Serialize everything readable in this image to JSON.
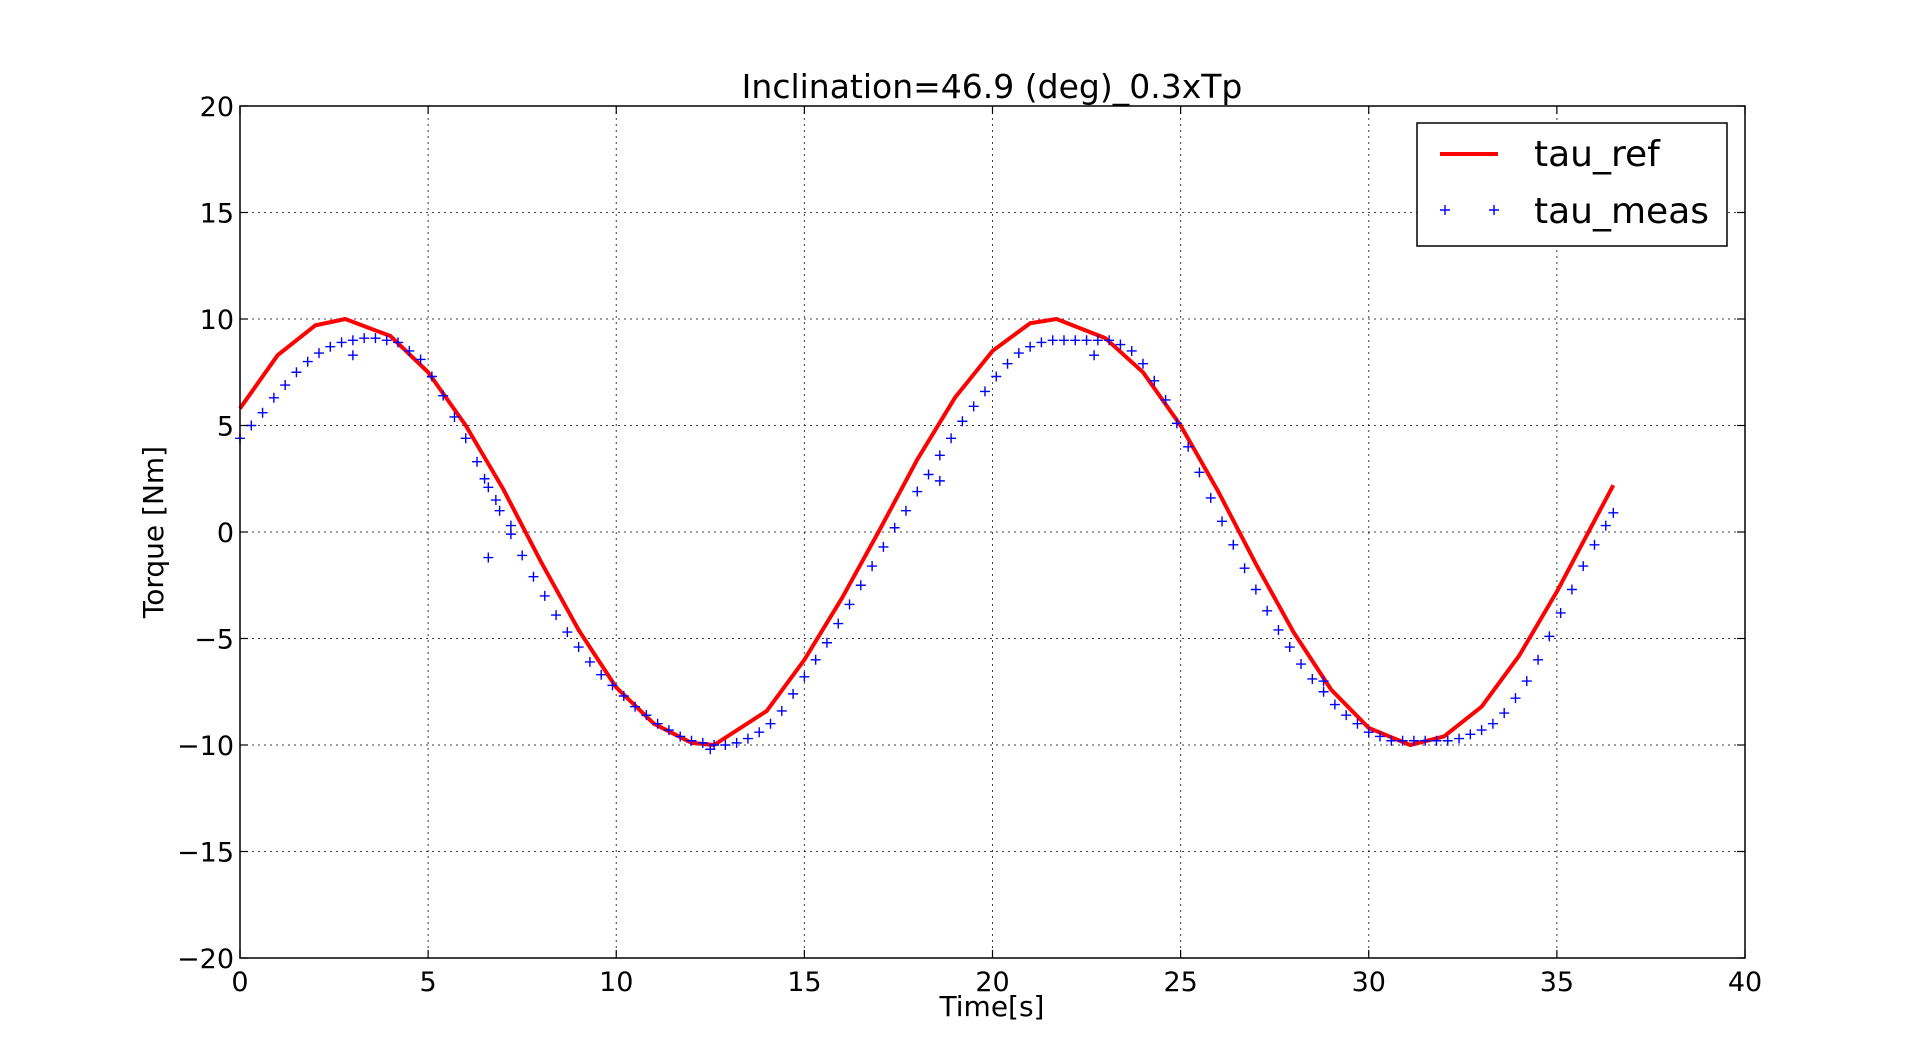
{
  "chart_data": {
    "type": "line",
    "title": "Inclination=46.9 (deg)_0.3xTp",
    "xlabel": "Time[s]",
    "ylabel": "Torque [Nm]",
    "xlim": [
      0,
      40
    ],
    "ylim": [
      -20,
      20
    ],
    "x_ticks": [
      "0",
      "5",
      "10",
      "15",
      "20",
      "25",
      "30",
      "35",
      "40"
    ],
    "y_ticks": [
      "20",
      "15",
      "10",
      "5",
      "0",
      "−5",
      "−10",
      "−15",
      "−20"
    ],
    "grid": true,
    "legend_position": "top-right",
    "series": [
      {
        "name": "tau_ref",
        "style": "line",
        "color": "#ff0000",
        "x": [
          0,
          1,
          2,
          2.8,
          4,
          5,
          6,
          7,
          8,
          9,
          10,
          11,
          12,
          12.6,
          14,
          15,
          16,
          17,
          18,
          19,
          20,
          21,
          21.7,
          23,
          24,
          25,
          26,
          27,
          28,
          29,
          30,
          31.1,
          32,
          33,
          34,
          35,
          36.5
        ],
        "y": [
          5.8,
          8.3,
          9.7,
          10.0,
          9.2,
          7.5,
          5.0,
          2.0,
          -1.4,
          -4.6,
          -7.3,
          -9.0,
          -9.9,
          -10.0,
          -8.4,
          -6.0,
          -3.1,
          0.1,
          3.4,
          6.3,
          8.5,
          9.8,
          10.0,
          9.1,
          7.5,
          5.0,
          1.9,
          -1.5,
          -4.7,
          -7.4,
          -9.2,
          -10.0,
          -9.6,
          -8.2,
          -5.8,
          -2.8,
          2.2
        ]
      },
      {
        "name": "tau_meas",
        "style": "markers",
        "color": "#0000ff",
        "x": [
          0,
          0.3,
          0.6,
          0.9,
          1.2,
          1.5,
          1.8,
          2.1,
          2.4,
          2.7,
          3.0,
          3.3,
          3.6,
          3.9,
          4.2,
          4.5,
          4.8,
          5.1,
          5.4,
          5.7,
          6.0,
          6.3,
          6.6,
          6.9,
          7.2,
          7.5,
          7.8,
          8.1,
          8.4,
          8.7,
          9.0,
          9.3,
          9.6,
          9.9,
          10.2,
          10.5,
          10.8,
          11.1,
          11.4,
          11.7,
          12.0,
          12.3,
          12.6,
          12.9,
          13.2,
          13.5,
          13.8,
          14.1,
          14.4,
          14.7,
          15.0,
          15.3,
          15.6,
          15.9,
          16.2,
          16.5,
          16.8,
          17.1,
          17.4,
          17.7,
          18.0,
          18.3,
          18.6,
          18.9,
          19.2,
          19.5,
          19.8,
          20.1,
          20.4,
          20.7,
          21.0,
          21.3,
          21.6,
          21.9,
          22.2,
          22.5,
          22.8,
          23.1,
          23.4,
          23.7,
          24.0,
          24.3,
          24.6,
          24.9,
          25.2,
          25.5,
          25.8,
          26.1,
          26.4,
          26.7,
          27.0,
          27.3,
          27.6,
          27.9,
          28.2,
          28.5,
          28.8,
          29.1,
          29.4,
          29.7,
          30.0,
          30.3,
          30.6,
          30.9,
          31.2,
          31.5,
          31.8,
          32.1,
          32.4,
          32.7,
          33.0,
          33.3,
          33.6,
          33.9,
          34.2,
          34.5,
          34.8,
          35.1,
          35.4,
          35.7,
          36.0,
          36.3,
          36.5,
          3.0,
          6.5,
          6.6,
          6.8,
          7.2,
          12.5,
          18.6,
          22.7,
          28.8
        ],
        "y": [
          4.4,
          5.0,
          5.6,
          6.3,
          6.9,
          7.5,
          8.0,
          8.4,
          8.7,
          8.9,
          9.0,
          9.1,
          9.1,
          9.0,
          8.9,
          8.5,
          8.1,
          7.3,
          6.4,
          5.4,
          4.4,
          3.3,
          2.1,
          1.0,
          -0.1,
          -1.1,
          -2.1,
          -3.0,
          -3.9,
          -4.7,
          -5.4,
          -6.1,
          -6.7,
          -7.2,
          -7.7,
          -8.2,
          -8.6,
          -9.0,
          -9.3,
          -9.6,
          -9.8,
          -9.9,
          -10.0,
          -10.0,
          -9.9,
          -9.7,
          -9.4,
          -9.0,
          -8.4,
          -7.6,
          -6.8,
          -6.0,
          -5.2,
          -4.3,
          -3.4,
          -2.5,
          -1.6,
          -0.7,
          0.2,
          1.0,
          1.9,
          2.7,
          3.6,
          4.4,
          5.2,
          5.9,
          6.6,
          7.3,
          7.9,
          8.4,
          8.7,
          8.9,
          9.0,
          9.0,
          9.0,
          9.0,
          9.0,
          9.0,
          8.8,
          8.5,
          7.9,
          7.1,
          6.2,
          5.1,
          4.0,
          2.8,
          1.6,
          0.5,
          -0.6,
          -1.7,
          -2.7,
          -3.7,
          -4.6,
          -5.4,
          -6.2,
          -6.9,
          -7.5,
          -8.1,
          -8.6,
          -9.0,
          -9.4,
          -9.6,
          -9.8,
          -9.8,
          -9.8,
          -9.8,
          -9.8,
          -9.8,
          -9.7,
          -9.5,
          -9.3,
          -9.0,
          -8.5,
          -7.8,
          -7.0,
          -6.0,
          -4.9,
          -3.8,
          -2.7,
          -1.6,
          -0.6,
          0.3,
          0.9,
          8.3,
          2.5,
          -1.2,
          1.5,
          0.3,
          -10.2,
          2.4,
          8.3,
          -7.0
        ]
      }
    ]
  }
}
